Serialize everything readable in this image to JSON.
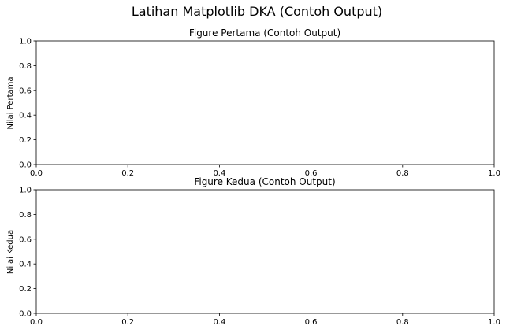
{
  "figure": {
    "suptitle": "Latihan Matplotlib DKA (Contoh Output)",
    "background": "#ffffff"
  },
  "chart_data": [
    {
      "type": "line",
      "title": "Figure Pertama (Contoh Output)",
      "xlabel": "",
      "ylabel": "Nilai Pertama",
      "xlim": [
        0,
        1
      ],
      "ylim": [
        0,
        1
      ],
      "x_ticks": [
        "0.0",
        "0.2",
        "0.4",
        "0.6",
        "0.8",
        "1.0"
      ],
      "y_ticks": [
        "0.0",
        "0.2",
        "0.4",
        "0.6",
        "0.8",
        "1.0"
      ],
      "series": [],
      "grid": false
    },
    {
      "type": "line",
      "title": "Figure Kedua (Contoh Output)",
      "xlabel": "",
      "ylabel": "Nilai Kedua",
      "xlim": [
        0,
        1
      ],
      "ylim": [
        0,
        1
      ],
      "x_ticks": [
        "0.0",
        "0.2",
        "0.4",
        "0.6",
        "0.8",
        "1.0"
      ],
      "y_ticks": [
        "0.0",
        "0.2",
        "0.4",
        "0.6",
        "0.8",
        "1.0"
      ],
      "series": [],
      "grid": false
    }
  ]
}
